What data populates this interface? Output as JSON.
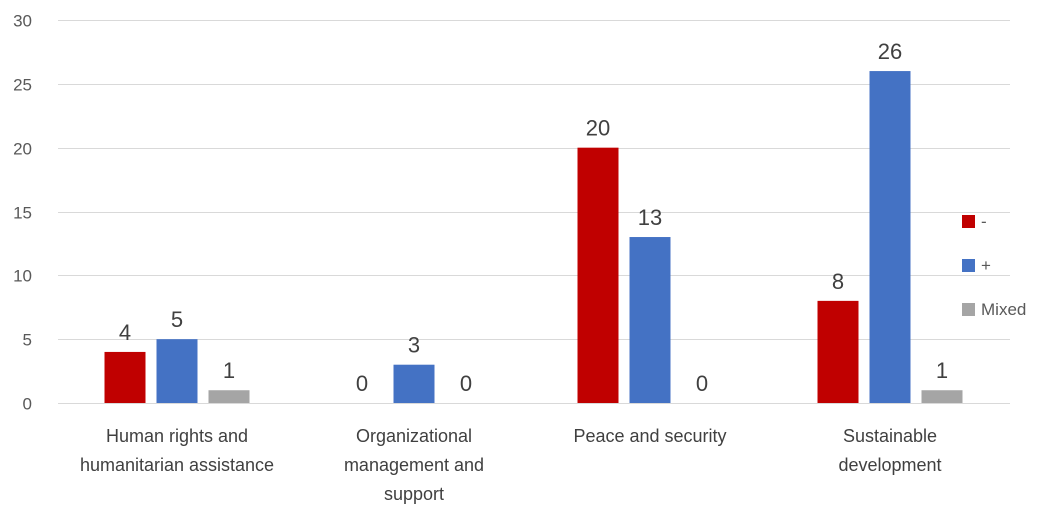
{
  "chart_data": {
    "type": "bar",
    "categories": [
      [
        "Human rights and",
        "humanitarian assistance"
      ],
      [
        "Organizational",
        "management and",
        "support"
      ],
      [
        "Peace and security"
      ],
      [
        "Sustainable",
        "development"
      ]
    ],
    "series": [
      {
        "name": "-",
        "color": "#c00000",
        "values": [
          4,
          0,
          20,
          8
        ]
      },
      {
        "name": "+",
        "color": "#4472c4",
        "values": [
          5,
          3,
          13,
          26
        ]
      },
      {
        "name": "Mixed",
        "color": "#a5a5a5",
        "values": [
          1,
          0,
          0,
          1
        ]
      }
    ],
    "ylim": [
      0,
      30
    ],
    "yticks": [
      0,
      5,
      10,
      15,
      20,
      25,
      30
    ],
    "data_labels": true,
    "grid": true,
    "legend_position": "right"
  }
}
